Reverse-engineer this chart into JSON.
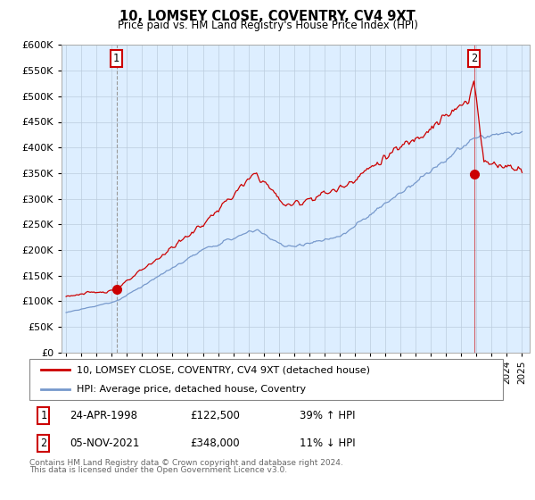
{
  "title": "10, LOMSEY CLOSE, COVENTRY, CV4 9XT",
  "subtitle": "Price paid vs. HM Land Registry's House Price Index (HPI)",
  "legend_line1": "10, LOMSEY CLOSE, COVENTRY, CV4 9XT (detached house)",
  "legend_line2": "HPI: Average price, detached house, Coventry",
  "annotation1_date": "24-APR-1998",
  "annotation1_price": "£122,500",
  "annotation1_hpi": "39% ↑ HPI",
  "annotation2_date": "05-NOV-2021",
  "annotation2_price": "£348,000",
  "annotation2_hpi": "11% ↓ HPI",
  "footnote1": "Contains HM Land Registry data © Crown copyright and database right 2024.",
  "footnote2": "This data is licensed under the Open Government Licence v3.0.",
  "red_color": "#cc0000",
  "blue_color": "#7799cc",
  "plot_bg": "#ddeeff",
  "ylim": [
    0,
    600000
  ],
  "ytick_vals": [
    0,
    50000,
    100000,
    150000,
    200000,
    250000,
    300000,
    350000,
    400000,
    450000,
    500000,
    550000,
    600000
  ],
  "sale1_year": 1998.31,
  "sale1_price": 122500,
  "sale2_year": 2021.84,
  "sale2_price": 348000,
  "xlim_left": 1994.7,
  "xlim_right": 2025.5
}
